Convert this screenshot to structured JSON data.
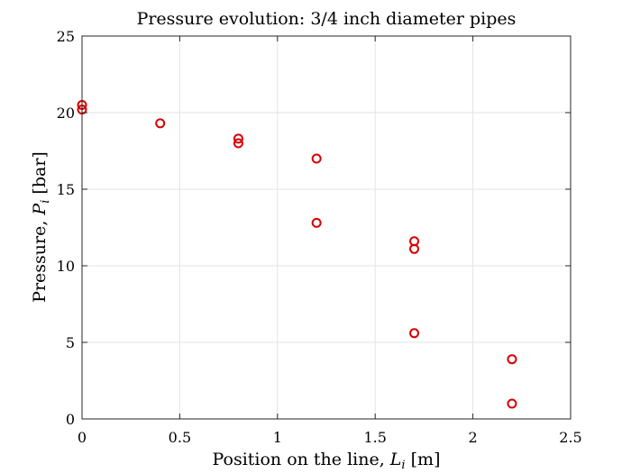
{
  "chart_data": {
    "type": "scatter",
    "title": "Pressure evolution: 3/4 inch diameter pipes",
    "xlabel": {
      "prefix": "Position on the line, ",
      "var": "L",
      "sub": "i",
      "suffix": " [m]"
    },
    "ylabel": {
      "prefix": "Pressure, ",
      "var": "P",
      "sub": "i",
      "suffix": " [bar]"
    },
    "xlim": [
      0,
      2.5
    ],
    "ylim": [
      0,
      25
    ],
    "xticks": [
      0,
      0.5,
      1,
      1.5,
      2,
      2.5
    ],
    "xtick_labels": [
      "0",
      "0.5",
      "1",
      "1.5",
      "2",
      "2.5"
    ],
    "yticks": [
      0,
      5,
      10,
      15,
      20,
      25
    ],
    "ytick_labels": [
      "0",
      "5",
      "10",
      "15",
      "20",
      "25"
    ],
    "grid": true,
    "marker": "circle-open",
    "marker_color": "#d90000",
    "points": [
      {
        "x": 0,
        "y": 20.5
      },
      {
        "x": 0,
        "y": 20.2
      },
      {
        "x": 0.4,
        "y": 19.3
      },
      {
        "x": 0.8,
        "y": 18.3
      },
      {
        "x": 0.8,
        "y": 18.0
      },
      {
        "x": 1.2,
        "y": 17.0
      },
      {
        "x": 1.2,
        "y": 12.8
      },
      {
        "x": 1.7,
        "y": 11.6
      },
      {
        "x": 1.7,
        "y": 11.1
      },
      {
        "x": 1.7,
        "y": 5.6
      },
      {
        "x": 2.2,
        "y": 3.9
      },
      {
        "x": 2.2,
        "y": 1.0
      }
    ]
  }
}
